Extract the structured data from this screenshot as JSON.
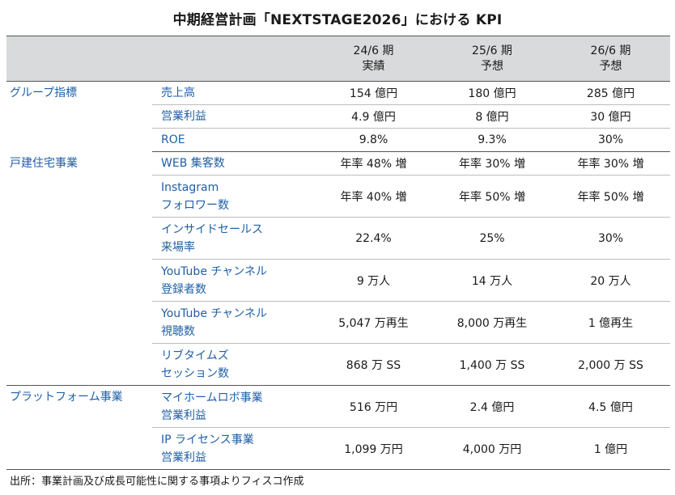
{
  "title": "中期経営計画「NEXTSTAGE2026」における KPI",
  "headers": [
    {
      "line1": "24/6 期",
      "line2": "実績"
    },
    {
      "line1": "25/6 期",
      "line2": "予想"
    },
    {
      "line1": "26/6 期",
      "line2": "予想"
    }
  ],
  "groups": [
    {
      "name": "グループ指標",
      "rows": [
        {
          "metric": [
            "売上高"
          ],
          "values": [
            "154 億円",
            "180 億円",
            "285 億円"
          ]
        },
        {
          "metric": [
            "営業利益"
          ],
          "values": [
            "4.9 億円",
            "8 億円",
            "30 億円"
          ]
        },
        {
          "metric": [
            "ROE"
          ],
          "values": [
            "9.8%",
            "9.3%",
            "30%"
          ]
        }
      ]
    },
    {
      "name": "戸建住宅事業",
      "rows": [
        {
          "metric": [
            "WEB 集客数"
          ],
          "values": [
            "年率 48% 増",
            "年率 30% 増",
            "年率 30% 増"
          ]
        },
        {
          "metric": [
            "Instagram",
            "フォロワー数"
          ],
          "values": [
            "年率 40% 増",
            "年率 50% 増",
            "年率 50% 増"
          ]
        },
        {
          "metric": [
            "インサイドセールス",
            "来場率"
          ],
          "values": [
            "22.4%",
            "25%",
            "30%"
          ]
        },
        {
          "metric": [
            "YouTube チャンネル",
            "登録者数"
          ],
          "values": [
            "9 万人",
            "14 万人",
            "20 万人"
          ]
        },
        {
          "metric": [
            "YouTube チャンネル",
            "視聴数"
          ],
          "values": [
            "5,047 万再生",
            "8,000 万再生",
            "1 億再生"
          ]
        },
        {
          "metric": [
            "リブタイムズ",
            "セッション数"
          ],
          "values": [
            "868 万 SS",
            "1,400 万 SS",
            "2,000 万 SS"
          ]
        }
      ]
    },
    {
      "name": "プラットフォーム事業",
      "rows": [
        {
          "metric": [
            "マイホームロボ事業",
            "営業利益"
          ],
          "values": [
            "516 万円",
            "2.4 億円",
            "4.5 億円"
          ]
        },
        {
          "metric": [
            "IP ライセンス事業",
            "営業利益"
          ],
          "values": [
            "1,099 万円",
            "4,000 万円",
            "1 億円"
          ]
        }
      ]
    }
  ],
  "source": "出所：事業計画及び成長可能性に関する事項よりフィスコ作成"
}
